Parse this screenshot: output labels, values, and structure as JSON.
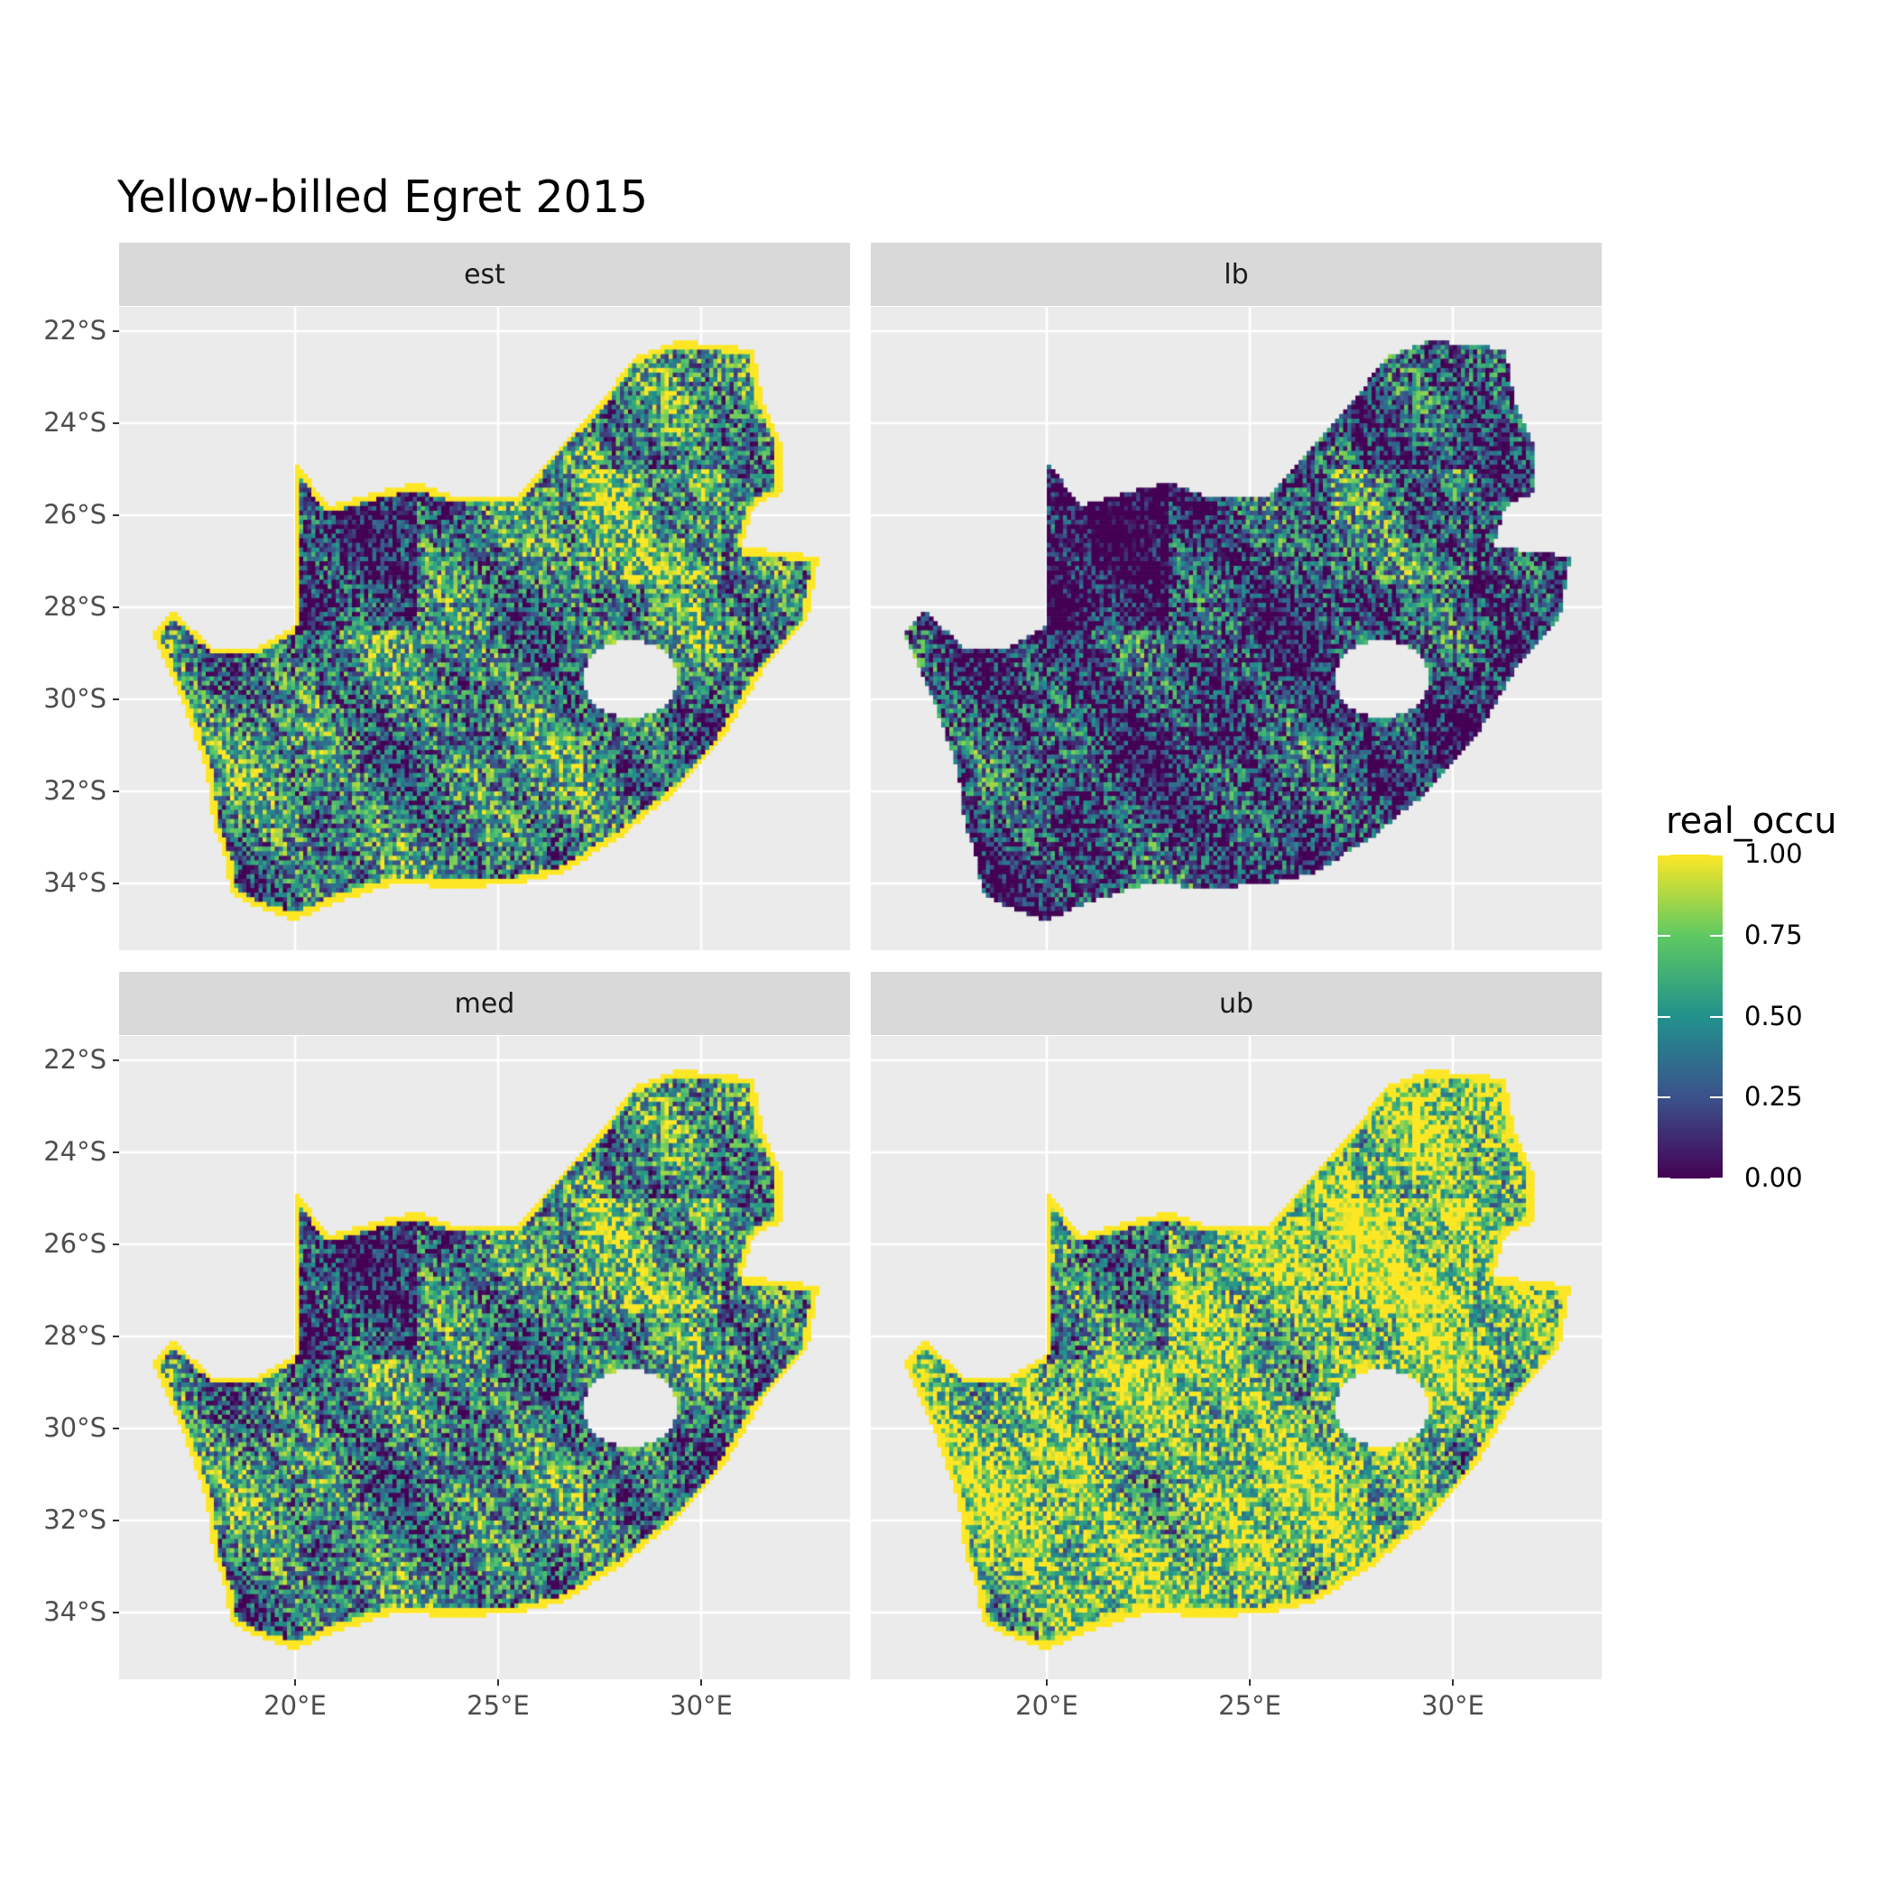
{
  "chart_data": {
    "type": "heatmap",
    "title": "Yellow-billed Egret 2015",
    "facets": [
      "est",
      "lb",
      "med",
      "ub"
    ],
    "x_ticks": [
      "20°E",
      "25°E",
      "30°E"
    ],
    "x_tick_values": [
      20,
      25,
      30
    ],
    "y_ticks": [
      "22°S",
      "24°S",
      "26°S",
      "28°S",
      "30°S",
      "32°S",
      "34°S"
    ],
    "y_tick_values": [
      -22,
      -24,
      -26,
      -28,
      -30,
      -32,
      -34
    ],
    "xlim": [
      16.2,
      34.3
    ],
    "ylim": [
      -35.3,
      -21.2
    ],
    "grid": true,
    "legend": {
      "title": "real_occu",
      "position": "right",
      "palette": "viridis",
      "range": [
        0,
        1
      ],
      "ticks": [
        "0.00",
        "0.25",
        "0.50",
        "0.75",
        "1.00"
      ],
      "colors": [
        "#440154",
        "#3b528b",
        "#21918c",
        "#5ec962",
        "#fde725"
      ]
    },
    "facet_mean_level": {
      "est": 0.45,
      "lb": 0.22,
      "med": 0.45,
      "ub": 0.75
    }
  }
}
